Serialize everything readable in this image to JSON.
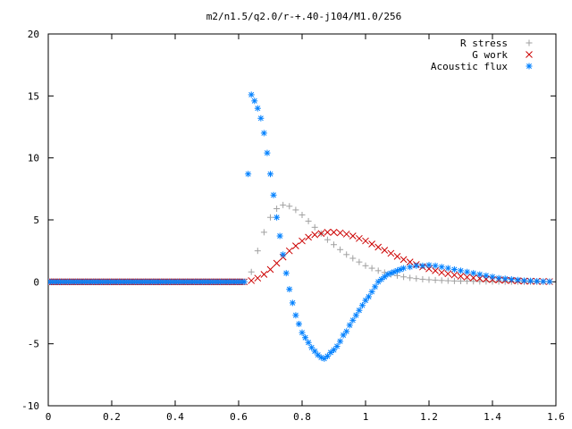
{
  "chart_data": {
    "type": "scatter",
    "title": "m2/n1.5/q2.0/r-+.40-j104/M1.0/256",
    "xlabel": "",
    "ylabel": "",
    "xlim": [
      0,
      1.6
    ],
    "ylim": [
      -10,
      20
    ],
    "x_ticks": [
      "0",
      "0.2",
      "0.4",
      "0.6",
      "0.8",
      "1",
      "1.2",
      "1.4",
      "1.6"
    ],
    "y_ticks": [
      "-10",
      "-5",
      "0",
      "5",
      "10",
      "15",
      "20"
    ],
    "grid": false,
    "legend_position": "top-right",
    "series": [
      {
        "name": "R stress",
        "marker": "plus",
        "color": "#a0a0a0",
        "x": [
          0.64,
          0.66,
          0.68,
          0.7,
          0.72,
          0.74,
          0.76,
          0.78,
          0.8,
          0.82,
          0.84,
          0.86,
          0.88,
          0.9,
          0.92,
          0.94,
          0.96,
          0.98,
          1.0,
          1.02,
          1.04,
          1.06,
          1.08,
          1.1,
          1.12,
          1.14,
          1.16,
          1.18,
          1.2,
          1.22,
          1.24,
          1.26,
          1.28,
          1.3,
          1.32,
          1.34,
          1.36,
          1.38,
          1.4,
          1.42,
          1.44,
          1.46,
          1.48,
          1.5,
          1.52,
          1.54,
          1.56,
          1.58
        ],
        "y": [
          0.8,
          2.5,
          4.0,
          5.2,
          5.9,
          6.2,
          6.1,
          5.8,
          5.4,
          4.9,
          4.4,
          3.9,
          3.4,
          3.0,
          2.6,
          2.2,
          1.9,
          1.6,
          1.3,
          1.1,
          0.9,
          0.75,
          0.6,
          0.5,
          0.4,
          0.32,
          0.26,
          0.21,
          0.17,
          0.14,
          0.11,
          0.09,
          0.07,
          0.06,
          0.05,
          0.04,
          0.03,
          0.03,
          0.02,
          0.02,
          0.01,
          0.01,
          0.01,
          0.0,
          0.0,
          0.0,
          0.0,
          0.0
        ]
      },
      {
        "name": "G work",
        "marker": "cross",
        "color": "#cc0000",
        "x": [
          0.64,
          0.66,
          0.68,
          0.7,
          0.72,
          0.74,
          0.76,
          0.78,
          0.8,
          0.82,
          0.84,
          0.86,
          0.88,
          0.9,
          0.92,
          0.94,
          0.96,
          0.98,
          1.0,
          1.02,
          1.04,
          1.06,
          1.08,
          1.1,
          1.12,
          1.14,
          1.16,
          1.18,
          1.2,
          1.22,
          1.24,
          1.26,
          1.28,
          1.3,
          1.32,
          1.34,
          1.36,
          1.38,
          1.4,
          1.42,
          1.44,
          1.46,
          1.48,
          1.5,
          1.52,
          1.54,
          1.56,
          1.58
        ],
        "y": [
          0.1,
          0.3,
          0.6,
          1.0,
          1.5,
          2.0,
          2.5,
          2.9,
          3.3,
          3.6,
          3.8,
          3.9,
          4.0,
          4.0,
          3.95,
          3.85,
          3.7,
          3.5,
          3.3,
          3.05,
          2.8,
          2.55,
          2.3,
          2.05,
          1.8,
          1.6,
          1.4,
          1.2,
          1.05,
          0.9,
          0.75,
          0.65,
          0.55,
          0.45,
          0.38,
          0.32,
          0.27,
          0.22,
          0.18,
          0.15,
          0.12,
          0.1,
          0.08,
          0.06,
          0.05,
          0.04,
          0.03,
          0.02
        ]
      },
      {
        "name": "Acoustic flux",
        "marker": "star",
        "color": "#0080ff",
        "x": [
          0.63,
          0.64,
          0.65,
          0.66,
          0.67,
          0.68,
          0.69,
          0.7,
          0.71,
          0.72,
          0.73,
          0.74,
          0.75,
          0.76,
          0.77,
          0.78,
          0.79,
          0.8,
          0.81,
          0.82,
          0.83,
          0.84,
          0.85,
          0.86,
          0.87,
          0.88,
          0.89,
          0.9,
          0.91,
          0.92,
          0.93,
          0.94,
          0.95,
          0.96,
          0.97,
          0.98,
          0.99,
          1.0,
          1.01,
          1.02,
          1.03,
          1.04,
          1.05,
          1.06,
          1.07,
          1.08,
          1.09,
          1.1,
          1.11,
          1.12,
          1.14,
          1.16,
          1.18,
          1.2,
          1.22,
          1.24,
          1.26,
          1.28,
          1.3,
          1.32,
          1.34,
          1.36,
          1.38,
          1.4,
          1.42,
          1.44,
          1.46,
          1.48,
          1.5,
          1.52,
          1.54,
          1.56,
          1.58
        ],
        "y": [
          8.7,
          15.1,
          14.6,
          14.0,
          13.2,
          12.0,
          10.4,
          8.7,
          7.0,
          5.2,
          3.7,
          2.2,
          0.7,
          -0.6,
          -1.7,
          -2.7,
          -3.4,
          -4.1,
          -4.5,
          -4.9,
          -5.3,
          -5.6,
          -5.9,
          -6.1,
          -6.2,
          -6.0,
          -5.7,
          -5.5,
          -5.2,
          -4.8,
          -4.3,
          -4.0,
          -3.5,
          -3.1,
          -2.7,
          -2.3,
          -1.9,
          -1.5,
          -1.2,
          -0.8,
          -0.4,
          0.0,
          0.2,
          0.4,
          0.6,
          0.7,
          0.8,
          0.9,
          1.0,
          1.1,
          1.2,
          1.3,
          1.3,
          1.35,
          1.3,
          1.2,
          1.1,
          1.0,
          0.9,
          0.8,
          0.7,
          0.6,
          0.5,
          0.4,
          0.3,
          0.25,
          0.2,
          0.15,
          0.1,
          0.08,
          0.05,
          0.03,
          0.02
        ]
      }
    ],
    "zero_prefix_range": [
      0.0,
      0.62
    ]
  }
}
